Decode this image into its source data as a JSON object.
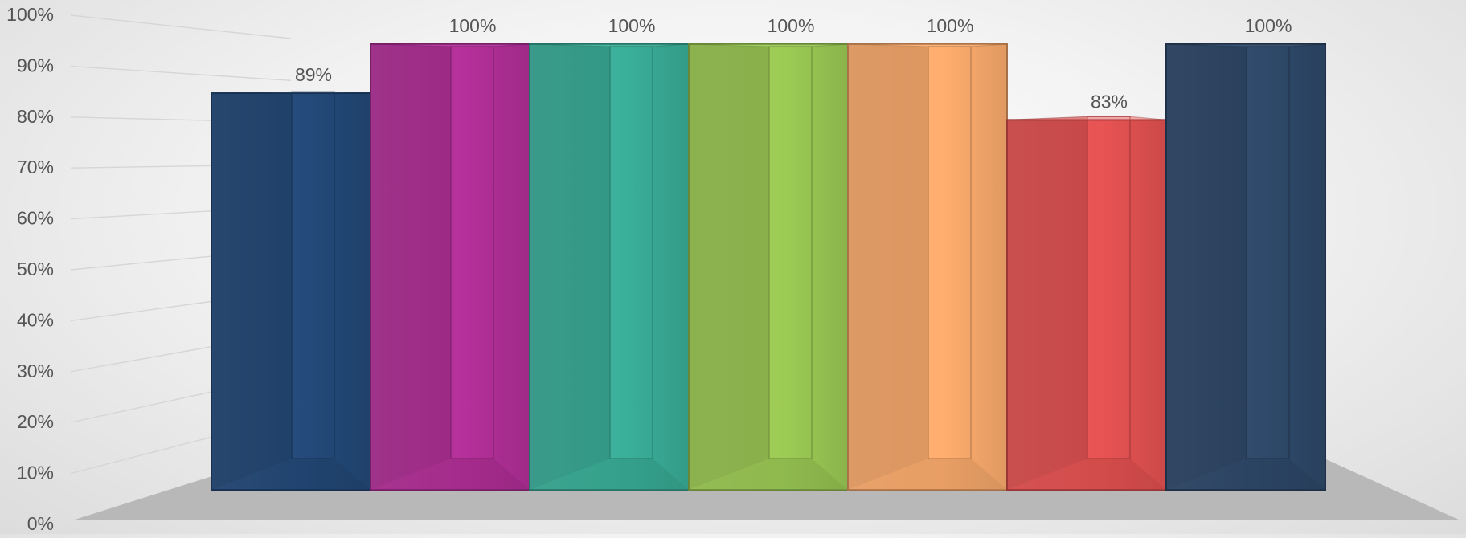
{
  "chart_data": {
    "type": "bar",
    "style": "3d-column",
    "categories": [
      "",
      "",
      "",
      "",
      "",
      "",
      ""
    ],
    "values": [
      89,
      100,
      100,
      100,
      100,
      83,
      100
    ],
    "data_labels": [
      "89%",
      "100%",
      "100%",
      "100%",
      "100%",
      "83%",
      "100%"
    ],
    "colors": [
      "#234a7a",
      "#b5309a",
      "#3ab09a",
      "#9dcc55",
      "#ffae6e",
      "#e85353",
      "#2f4a6b"
    ],
    "y_tick_labels": [
      "0%",
      "10%",
      "20%",
      "30%",
      "40%",
      "50%",
      "60%",
      "70%",
      "80%",
      "90%",
      "100%"
    ],
    "ylim": [
      0,
      100
    ],
    "grid": true,
    "legend": "none",
    "title": "",
    "xlabel": "",
    "ylabel": ""
  }
}
